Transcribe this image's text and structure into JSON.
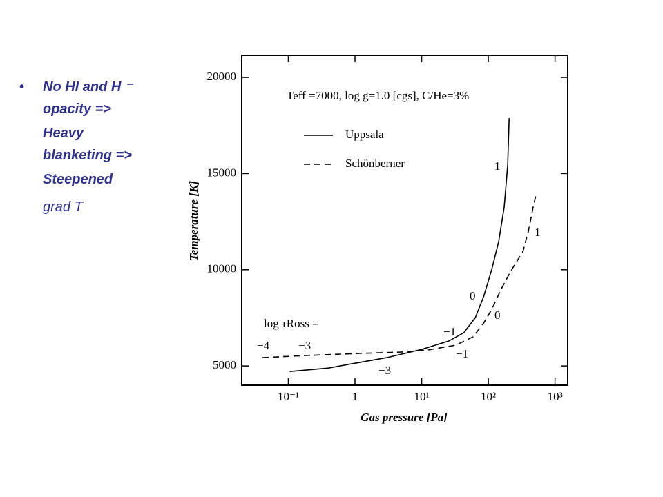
{
  "slide": {
    "bullet_lines": [
      "No HI and H ⁻",
      "opacity =>",
      "Heavy",
      "blanketing =>",
      "Steepened",
      "grad T"
    ]
  },
  "chart_data": {
    "type": "line",
    "title": "Teff =7000, log g=1.0 [cgs], C/He=3%",
    "x_label": "Gas pressure  [Pa]",
    "y_label": "Temperature [K]",
    "log_x": true,
    "xlim": [
      0.02,
      1550
    ],
    "ylim": [
      4000,
      21150
    ],
    "xticks": [
      {
        "value": 0.1,
        "label": "10⁻¹"
      },
      1,
      {
        "value": 10,
        "label": "10¹"
      },
      {
        "value": 100,
        "label": "10²"
      },
      {
        "value": 1000,
        "label": "10³"
      }
    ],
    "yticks": [
      5000,
      10000,
      15000,
      20000
    ],
    "tau_label": "log τRoss =",
    "annotations": [
      "−4",
      "−3",
      "−3",
      "−1",
      "−1",
      "0",
      "0",
      "1",
      "1"
    ],
    "series": [
      {
        "name": "Uppsala",
        "color": "#000000",
        "dash": "solid",
        "x": [
          0.105,
          0.4,
          1.0,
          3.0,
          10,
          25.7,
          43,
          64,
          85,
          113,
          143,
          173,
          195,
          205
        ],
        "values": [
          4712,
          4890,
          5140,
          5430,
          5860,
          6300,
          6730,
          7520,
          8600,
          10040,
          11470,
          13270,
          15430,
          17880
        ]
      },
      {
        "name": "Schönberner",
        "color": "#000000",
        "dash": "dashed",
        "x": [
          0.041,
          0.171,
          1.15,
          4.8,
          12.5,
          32.6,
          59,
          85,
          113,
          154,
          220,
          330,
          399,
          472,
          519
        ],
        "values": [
          5430,
          5540,
          5650,
          5720,
          5830,
          6080,
          6510,
          7230,
          7950,
          8960,
          9960,
          10940,
          12010,
          13270,
          13880
        ]
      }
    ]
  }
}
